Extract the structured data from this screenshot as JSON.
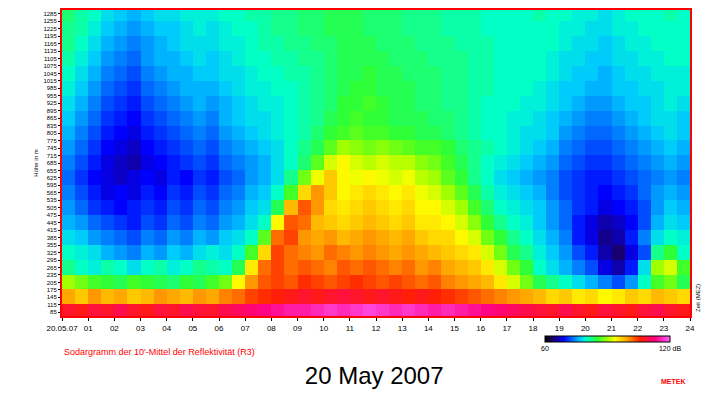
{
  "chart_data": {
    "type": "heatmap",
    "title": "20 May 2007",
    "caption": "Sodargramm der 10'-Mittel der Reflektivität (R3)",
    "credit": "METEK",
    "x_label": "Zeit (MEZ)",
    "y_label": "Höhe in m",
    "grid": false,
    "xlim": [
      0,
      24
    ],
    "xticks": [
      {
        "value": 0,
        "label": "20.05.07"
      },
      {
        "value": 1,
        "label": "01"
      },
      {
        "value": 2,
        "label": "02"
      },
      {
        "value": 3,
        "label": "03"
      },
      {
        "value": 4,
        "label": "04"
      },
      {
        "value": 5,
        "label": "05"
      },
      {
        "value": 6,
        "label": "06"
      },
      {
        "value": 7,
        "label": "07"
      },
      {
        "value": 8,
        "label": "08"
      },
      {
        "value": 9,
        "label": "09"
      },
      10,
      11,
      12,
      13,
      14,
      15,
      16,
      17,
      18,
      19,
      20,
      21,
      22,
      23,
      24
    ],
    "ylim": [
      70,
      1300
    ],
    "yticks": [
      85,
      115,
      145,
      175,
      205,
      235,
      265,
      295,
      325,
      355,
      385,
      415,
      445,
      475,
      505,
      535,
      565,
      595,
      625,
      655,
      685,
      715,
      745,
      775,
      805,
      835,
      865,
      895,
      925,
      955,
      985,
      1015,
      1045,
      1075,
      1105,
      1135,
      1165,
      1195,
      1225,
      1255,
      1285
    ],
    "colorbar_range": [
      60,
      120
    ],
    "colorbar_ticks": [
      60,
      {
        "value": 120,
        "label": "120 dB"
      }
    ],
    "x": [
      0.25,
      0.75,
      1.25,
      1.75,
      2.25,
      2.75,
      3.25,
      3.75,
      4.25,
      4.75,
      5.25,
      5.75,
      6.25,
      6.75,
      7.25,
      7.75,
      8.25,
      8.75,
      9.25,
      9.75,
      10.25,
      10.75,
      11.25,
      11.75,
      12.25,
      12.75,
      13.25,
      13.75,
      14.25,
      14.75,
      15.25,
      15.75,
      16.25,
      16.75,
      17.25,
      17.75,
      18.25,
      18.75,
      19.25,
      19.75,
      20.25,
      20.75,
      21.25,
      21.75,
      22.25,
      22.75,
      23.25,
      23.75
    ],
    "y": [
      85,
      145,
      205,
      265,
      325,
      385,
      445,
      505,
      565,
      625,
      685,
      745,
      805,
      865,
      925,
      985,
      1045,
      1105,
      1165,
      1225,
      1285
    ],
    "cells": [
      [
        108,
        107,
        109,
        108,
        110,
        108,
        107,
        109,
        108,
        110,
        109,
        108,
        110,
        111,
        112,
        113,
        114,
        115,
        115,
        116,
        117,
        116,
        117,
        118,
        117,
        116,
        117,
        116,
        115,
        116,
        115,
        114,
        113,
        112,
        111,
        110,
        109,
        108,
        110,
        108,
        107,
        109,
        108,
        107,
        109,
        110,
        108,
        107
      ],
      [
        99,
        97,
        100,
        98,
        99,
        97,
        98,
        100,
        99,
        98,
        100,
        99,
        101,
        102,
        104,
        105,
        106,
        107,
        108,
        107,
        108,
        109,
        108,
        107,
        108,
        107,
        106,
        107,
        106,
        105,
        104,
        103,
        102,
        101,
        100,
        99,
        98,
        96,
        97,
        95,
        96,
        94,
        95,
        97,
        96,
        98,
        97,
        96
      ],
      [
        90,
        88,
        86,
        85,
        84,
        86,
        85,
        84,
        83,
        85,
        84,
        86,
        88,
        94,
        100,
        103,
        104,
        103,
        105,
        104,
        103,
        104,
        105,
        104,
        103,
        104,
        103,
        102,
        103,
        101,
        100,
        99,
        98,
        95,
        92,
        88,
        84,
        82,
        80,
        78,
        76,
        74,
        72,
        75,
        80,
        86,
        88,
        84
      ],
      [
        82,
        80,
        79,
        81,
        80,
        78,
        80,
        81,
        79,
        80,
        82,
        81,
        80,
        84,
        95,
        102,
        104,
        102,
        103,
        102,
        101,
        103,
        102,
        103,
        102,
        101,
        102,
        100,
        101,
        99,
        98,
        97,
        95,
        92,
        88,
        85,
        80,
        78,
        76,
        74,
        72,
        68,
        66,
        70,
        78,
        90,
        92,
        86
      ],
      [
        80,
        79,
        78,
        76,
        75,
        74,
        76,
        75,
        77,
        76,
        78,
        79,
        78,
        80,
        86,
        96,
        104,
        102,
        101,
        100,
        102,
        101,
        100,
        101,
        100,
        99,
        100,
        99,
        98,
        97,
        96,
        95,
        92,
        88,
        84,
        82,
        79,
        77,
        75,
        72,
        70,
        66,
        64,
        68,
        72,
        82,
        85,
        80
      ],
      [
        78,
        77,
        75,
        74,
        73,
        72,
        74,
        73,
        75,
        74,
        76,
        75,
        77,
        78,
        80,
        87,
        102,
        104,
        100,
        99,
        100,
        98,
        99,
        100,
        99,
        98,
        99,
        97,
        96,
        96,
        94,
        92,
        88,
        85,
        82,
        80,
        78,
        76,
        74,
        70,
        68,
        65,
        66,
        70,
        74,
        78,
        80,
        79
      ],
      [
        76,
        75,
        73,
        72,
        71,
        70,
        72,
        71,
        73,
        72,
        74,
        73,
        75,
        76,
        78,
        80,
        94,
        103,
        102,
        98,
        97,
        96,
        97,
        98,
        97,
        96,
        97,
        95,
        95,
        94,
        92,
        89,
        85,
        82,
        80,
        79,
        77,
        75,
        73,
        70,
        68,
        66,
        67,
        69,
        72,
        76,
        78,
        77
      ],
      [
        75,
        73,
        71,
        70,
        69,
        70,
        71,
        70,
        72,
        71,
        73,
        72,
        74,
        75,
        77,
        78,
        84,
        98,
        103,
        100,
        96,
        95,
        96,
        97,
        96,
        95,
        96,
        94,
        94,
        92,
        90,
        86,
        83,
        80,
        79,
        78,
        77,
        75,
        73,
        71,
        70,
        68,
        69,
        70,
        72,
        75,
        77,
        76
      ],
      [
        74,
        72,
        70,
        68,
        69,
        68,
        70,
        69,
        71,
        70,
        72,
        71,
        73,
        74,
        76,
        77,
        80,
        86,
        96,
        100,
        97,
        94,
        95,
        96,
        95,
        94,
        95,
        93,
        92,
        90,
        87,
        84,
        81,
        79,
        78,
        77,
        76,
        74,
        72,
        71,
        70,
        69,
        70,
        71,
        73,
        75,
        76,
        75
      ],
      [
        73,
        71,
        69,
        68,
        67,
        68,
        69,
        68,
        70,
        69,
        71,
        70,
        72,
        73,
        75,
        76,
        78,
        82,
        88,
        93,
        97,
        94,
        93,
        94,
        93,
        92,
        93,
        91,
        90,
        87,
        85,
        82,
        80,
        78,
        77,
        76,
        75,
        74,
        72,
        71,
        70,
        70,
        71,
        72,
        73,
        74,
        75,
        74
      ],
      [
        74,
        72,
        70,
        68,
        67,
        66,
        68,
        69,
        70,
        71,
        72,
        71,
        73,
        74,
        75,
        76,
        78,
        80,
        83,
        87,
        92,
        94,
        92,
        91,
        92,
        91,
        91,
        89,
        88,
        86,
        84,
        82,
        80,
        79,
        78,
        77,
        76,
        75,
        73,
        72,
        71,
        71,
        72,
        73,
        74,
        75,
        76,
        75
      ],
      [
        75,
        73,
        71,
        69,
        68,
        67,
        69,
        70,
        71,
        72,
        73,
        72,
        74,
        75,
        76,
        77,
        78,
        80,
        82,
        84,
        87,
        90,
        89,
        88,
        89,
        88,
        87,
        86,
        86,
        85,
        83,
        82,
        81,
        80,
        79,
        78,
        77,
        76,
        74,
        73,
        72,
        72,
        73,
        74,
        75,
        76,
        77,
        76
      ],
      [
        76,
        74,
        72,
        70,
        69,
        68,
        70,
        71,
        72,
        73,
        74,
        73,
        75,
        76,
        77,
        78,
        79,
        80,
        81,
        83,
        85,
        86,
        87,
        86,
        86,
        85,
        85,
        84,
        84,
        83,
        82,
        81,
        80,
        80,
        79,
        78,
        78,
        77,
        75,
        74,
        73,
        73,
        74,
        75,
        76,
        77,
        78,
        77
      ],
      [
        77,
        75,
        73,
        71,
        70,
        69,
        71,
        72,
        73,
        74,
        75,
        74,
        76,
        77,
        78,
        78,
        79,
        80,
        81,
        82,
        84,
        85,
        86,
        85,
        85,
        84,
        84,
        84,
        83,
        83,
        82,
        81,
        80,
        80,
        79,
        79,
        78,
        77,
        76,
        75,
        74,
        74,
        75,
        76,
        77,
        78,
        78,
        77
      ],
      [
        78,
        76,
        74,
        72,
        71,
        70,
        72,
        73,
        74,
        75,
        76,
        75,
        76,
        77,
        78,
        79,
        79,
        80,
        81,
        82,
        83,
        85,
        85,
        86,
        85,
        84,
        84,
        83,
        83,
        82,
        82,
        81,
        80,
        80,
        80,
        79,
        79,
        78,
        77,
        76,
        75,
        75,
        76,
        77,
        77,
        78,
        79,
        78
      ],
      [
        79,
        77,
        75,
        73,
        72,
        71,
        73,
        74,
        75,
        76,
        76,
        76,
        77,
        78,
        79,
        79,
        80,
        80,
        81,
        82,
        83,
        84,
        85,
        85,
        84,
        84,
        84,
        83,
        83,
        82,
        82,
        81,
        81,
        80,
        80,
        80,
        79,
        78,
        77,
        77,
        76,
        76,
        77,
        77,
        78,
        78,
        79,
        79
      ],
      [
        80,
        78,
        76,
        74,
        73,
        72,
        74,
        75,
        76,
        76,
        77,
        77,
        78,
        78,
        79,
        80,
        80,
        81,
        81,
        82,
        83,
        84,
        84,
        85,
        84,
        84,
        83,
        83,
        83,
        82,
        82,
        81,
        81,
        80,
        80,
        80,
        80,
        79,
        78,
        77,
        77,
        76,
        77,
        78,
        78,
        79,
        79,
        79
      ],
      [
        81,
        79,
        77,
        75,
        74,
        73,
        75,
        76,
        76,
        77,
        78,
        77,
        78,
        79,
        80,
        80,
        81,
        81,
        82,
        82,
        83,
        84,
        84,
        84,
        84,
        83,
        83,
        83,
        82,
        82,
        82,
        81,
        81,
        80,
        80,
        80,
        80,
        79,
        78,
        78,
        77,
        77,
        78,
        78,
        79,
        79,
        80,
        80
      ],
      [
        82,
        80,
        78,
        76,
        75,
        74,
        75,
        76,
        77,
        78,
        78,
        78,
        79,
        79,
        80,
        81,
        81,
        82,
        82,
        83,
        83,
        84,
        84,
        84,
        83,
        83,
        83,
        82,
        82,
        82,
        81,
        81,
        81,
        80,
        80,
        80,
        80,
        80,
        79,
        78,
        78,
        77,
        78,
        79,
        79,
        80,
        80,
        80
      ],
      [
        82,
        81,
        79,
        77,
        76,
        75,
        76,
        77,
        77,
        78,
        79,
        78,
        79,
        80,
        80,
        81,
        82,
        82,
        83,
        83,
        84,
        84,
        84,
        83,
        83,
        83,
        82,
        82,
        82,
        81,
        81,
        81,
        80,
        80,
        80,
        80,
        80,
        80,
        79,
        79,
        78,
        78,
        79,
        79,
        80,
        80,
        80,
        80
      ],
      [
        83,
        81,
        80,
        78,
        77,
        76,
        77,
        78,
        78,
        79,
        79,
        79,
        80,
        80,
        81,
        81,
        82,
        82,
        83,
        83,
        84,
        84,
        84,
        83,
        83,
        83,
        82,
        82,
        82,
        81,
        81,
        81,
        80,
        80,
        80,
        80,
        81,
        80,
        80,
        79,
        79,
        78,
        79,
        80,
        80,
        80,
        81,
        80
      ]
    ]
  }
}
